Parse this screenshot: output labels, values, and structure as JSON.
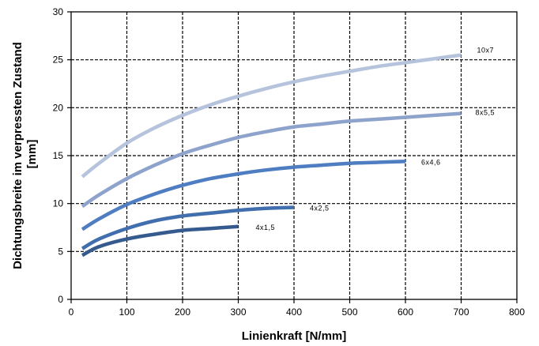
{
  "chart_data": {
    "type": "line",
    "xlabel": "Linienkraft [N/mm]",
    "ylabel": [
      "Dichtungsbreite im verpressten Zustand",
      "[mm]"
    ],
    "xlim": [
      0,
      800
    ],
    "ylim": [
      0,
      30
    ],
    "xticks": [
      "0",
      "100",
      "200",
      "300",
      "400",
      "500",
      "600",
      "700",
      "800"
    ],
    "yticks": [
      "0",
      "5",
      "10",
      "15",
      "20",
      "25",
      "30"
    ],
    "grid": true,
    "grid_style": "dashed",
    "series": [
      {
        "name": "10x7",
        "color": "#b5c3dc",
        "x": [
          20,
          50,
          100,
          150,
          200,
          250,
          300,
          350,
          400,
          450,
          500,
          550,
          600,
          650,
          700
        ],
        "y": [
          12.8,
          14.2,
          16.3,
          17.9,
          19.2,
          20.3,
          21.2,
          22.0,
          22.7,
          23.3,
          23.8,
          24.3,
          24.7,
          25.1,
          25.5
        ]
      },
      {
        "name": "8x5,5",
        "color": "#8ea3cb",
        "x": [
          20,
          50,
          100,
          150,
          200,
          250,
          300,
          350,
          400,
          450,
          500,
          550,
          600,
          650,
          700
        ],
        "y": [
          9.7,
          10.9,
          12.6,
          14.0,
          15.2,
          16.1,
          16.9,
          17.5,
          18.0,
          18.3,
          18.6,
          18.8,
          19.0,
          19.2,
          19.4
        ]
      },
      {
        "name": "6x4,6",
        "color": "#4f7dc2",
        "x": [
          20,
          50,
          100,
          150,
          200,
          250,
          300,
          350,
          400,
          450,
          500,
          550,
          600
        ],
        "y": [
          7.3,
          8.4,
          9.9,
          11.0,
          11.9,
          12.6,
          13.1,
          13.5,
          13.8,
          14.0,
          14.2,
          14.3,
          14.4
        ]
      },
      {
        "name": "4x2,5",
        "color": "#416ead",
        "x": [
          20,
          50,
          100,
          150,
          200,
          250,
          300,
          350,
          400
        ],
        "y": [
          5.3,
          6.3,
          7.4,
          8.2,
          8.7,
          9.0,
          9.3,
          9.5,
          9.6
        ]
      },
      {
        "name": "4x1,5",
        "color": "#345a8e",
        "x": [
          20,
          50,
          100,
          150,
          200,
          250,
          300
        ],
        "y": [
          4.6,
          5.5,
          6.3,
          6.8,
          7.2,
          7.4,
          7.6
        ]
      }
    ]
  }
}
